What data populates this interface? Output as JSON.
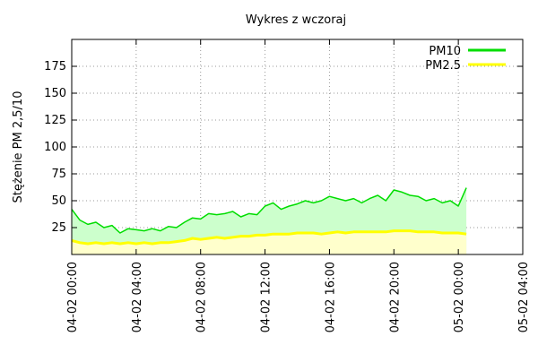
{
  "chart_data": {
    "type": "area",
    "title": "Wykres z wczoraj",
    "xlabel": "",
    "ylabel": "Stężenie PM 2,5/10",
    "xlim": [
      0,
      28
    ],
    "ylim": [
      0,
      200
    ],
    "x_ticks": [
      {
        "x": 0,
        "label": "04-02 00:00"
      },
      {
        "x": 4,
        "label": "04-02 04:00"
      },
      {
        "x": 8,
        "label": "04-02 08:00"
      },
      {
        "x": 12,
        "label": "04-02 12:00"
      },
      {
        "x": 16,
        "label": "04-02 16:00"
      },
      {
        "x": 20,
        "label": "04-02 20:00"
      },
      {
        "x": 24,
        "label": "05-02 00:00"
      },
      {
        "x": 28,
        "label": "05-02 04:00"
      }
    ],
    "y_ticks": [
      {
        "y": 25,
        "label": "25"
      },
      {
        "y": 50,
        "label": "50"
      },
      {
        "y": 75,
        "label": "75"
      },
      {
        "y": 100,
        "label": "100"
      },
      {
        "y": 125,
        "label": "125"
      },
      {
        "y": 150,
        "label": "150"
      },
      {
        "y": 175,
        "label": "175"
      }
    ],
    "grid": true,
    "legend_position": "top-right",
    "x_hours": [
      0,
      0.5,
      1,
      1.5,
      2,
      2.5,
      3,
      3.5,
      4,
      4.5,
      5,
      5.5,
      6,
      6.5,
      7,
      7.5,
      8,
      8.5,
      9,
      9.5,
      10,
      10.5,
      11,
      11.5,
      12,
      12.5,
      13,
      13.5,
      14,
      14.5,
      15,
      15.5,
      16,
      16.5,
      17,
      17.5,
      18,
      18.5,
      19,
      19.5,
      20,
      20.5,
      21,
      21.5,
      22,
      22.5,
      23,
      23.5,
      24,
      24.5
    ],
    "series": [
      {
        "name": "PM10",
        "line_color": "#00dd00",
        "fill_color": "#ccffcc",
        "values": [
          42,
          32,
          28,
          30,
          25,
          27,
          20,
          24,
          23,
          22,
          24,
          22,
          26,
          25,
          30,
          34,
          33,
          38,
          37,
          38,
          40,
          35,
          38,
          37,
          45,
          48,
          42,
          45,
          47,
          50,
          48,
          50,
          54,
          52,
          50,
          52,
          48,
          52,
          55,
          50,
          60,
          58,
          55,
          54,
          50,
          52,
          48,
          50,
          45,
          62
        ]
      },
      {
        "name": "PM2.5",
        "line_color": "#ffff00",
        "fill_color": "#ffffcc",
        "values": [
          13,
          11,
          10,
          11,
          10,
          11,
          10,
          11,
          10,
          11,
          10,
          11,
          11,
          12,
          13,
          15,
          14,
          15,
          16,
          15,
          16,
          17,
          17,
          18,
          18,
          19,
          19,
          19,
          20,
          20,
          20,
          19,
          20,
          21,
          20,
          21,
          21,
          21,
          21,
          21,
          22,
          22,
          22,
          21,
          21,
          21,
          20,
          20,
          20,
          19
        ]
      }
    ]
  }
}
